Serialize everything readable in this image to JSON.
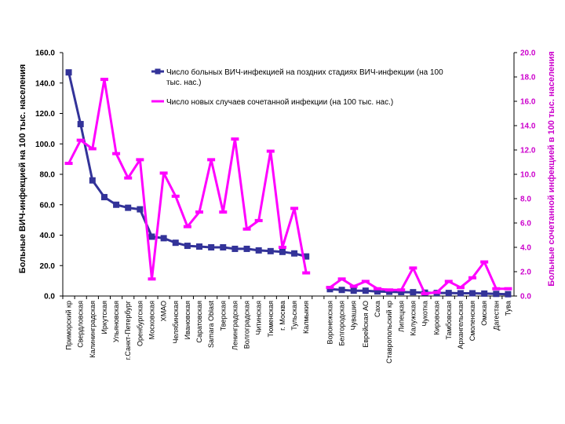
{
  "chart_data": {
    "type": "line",
    "title": "",
    "ylabel_left": "Больные ВИЧ-инфекцией на 100 тыс. населения",
    "ylabel_right": "Больные сочетанной инфекцией в 100 тыс. населения",
    "ylim_left": [
      0,
      160
    ],
    "ylim_right": [
      0,
      20
    ],
    "yticks_left": [
      "0.0",
      "20.0",
      "40.0",
      "60.0",
      "80.0",
      "100.0",
      "120.0",
      "140.0",
      "160.0"
    ],
    "yticks_right": [
      "0.0",
      "2.0",
      "4.0",
      "6.0",
      "8.0",
      "10.0",
      "12.0",
      "14.0",
      "16.0",
      "18.0",
      "20.0"
    ],
    "categories": [
      "Приморский кр",
      "Свердловская",
      "Калининградская",
      "Иркутская",
      "Ульяновская",
      "г.Санкт-Петербург",
      "Оренбургская",
      "Московская",
      "ХМАО",
      "Челябинская",
      "Ивановская",
      "Саратовская",
      "Samara Oblast",
      "Тверская",
      "Ленинградская",
      "Волгоградская",
      "Читинская",
      "Тюменская",
      "г. Москва",
      "Тульская",
      "Калмыкия",
      "",
      "Воронежская",
      "Белгородская",
      "Чувашия",
      "Еврейская АО",
      "Саха",
      "Ставропольский кр",
      "Липецкая",
      "Калужская",
      "Чукотка",
      "Кировская",
      "Тамбовская",
      "Архангельская",
      "Смоленская",
      "Омская",
      "Дагестан",
      "Тува"
    ],
    "series": [
      {
        "name": "Число больных ВИЧ-инфекцией на поздних стадиях ВИЧ-инфекции (на 100 тыс. нас.)",
        "axis": "left",
        "color": "#333399",
        "marker": "square",
        "values": [
          147,
          113,
          76,
          65,
          60,
          58,
          57,
          39,
          38,
          35,
          33,
          32.5,
          32,
          32,
          31,
          31,
          30,
          29.5,
          29,
          28,
          26,
          null,
          4.5,
          4,
          3.5,
          3.5,
          3,
          2.8,
          2.6,
          2.5,
          2.2,
          2,
          2,
          1.8,
          1.8,
          1.6,
          1.4,
          1.2
        ]
      },
      {
        "name": "Число новых случаев сочетанной инфекции (на 100 тыс. нас.)",
        "axis": "right",
        "color": "#ff00ff",
        "marker": "dash",
        "values": [
          10.9,
          12.8,
          12.1,
          17.8,
          11.7,
          9.7,
          11.2,
          1.4,
          10.1,
          8.2,
          5.7,
          6.9,
          11.2,
          6.9,
          12.9,
          5.5,
          6.2,
          11.9,
          4,
          7.2,
          1.9,
          null,
          0.7,
          1.4,
          0.8,
          1.2,
          0.6,
          0.5,
          0.5,
          2.3,
          0.2,
          0.3,
          1.2,
          0.7,
          1.5,
          2.8,
          0.6,
          0.6
        ]
      }
    ]
  }
}
